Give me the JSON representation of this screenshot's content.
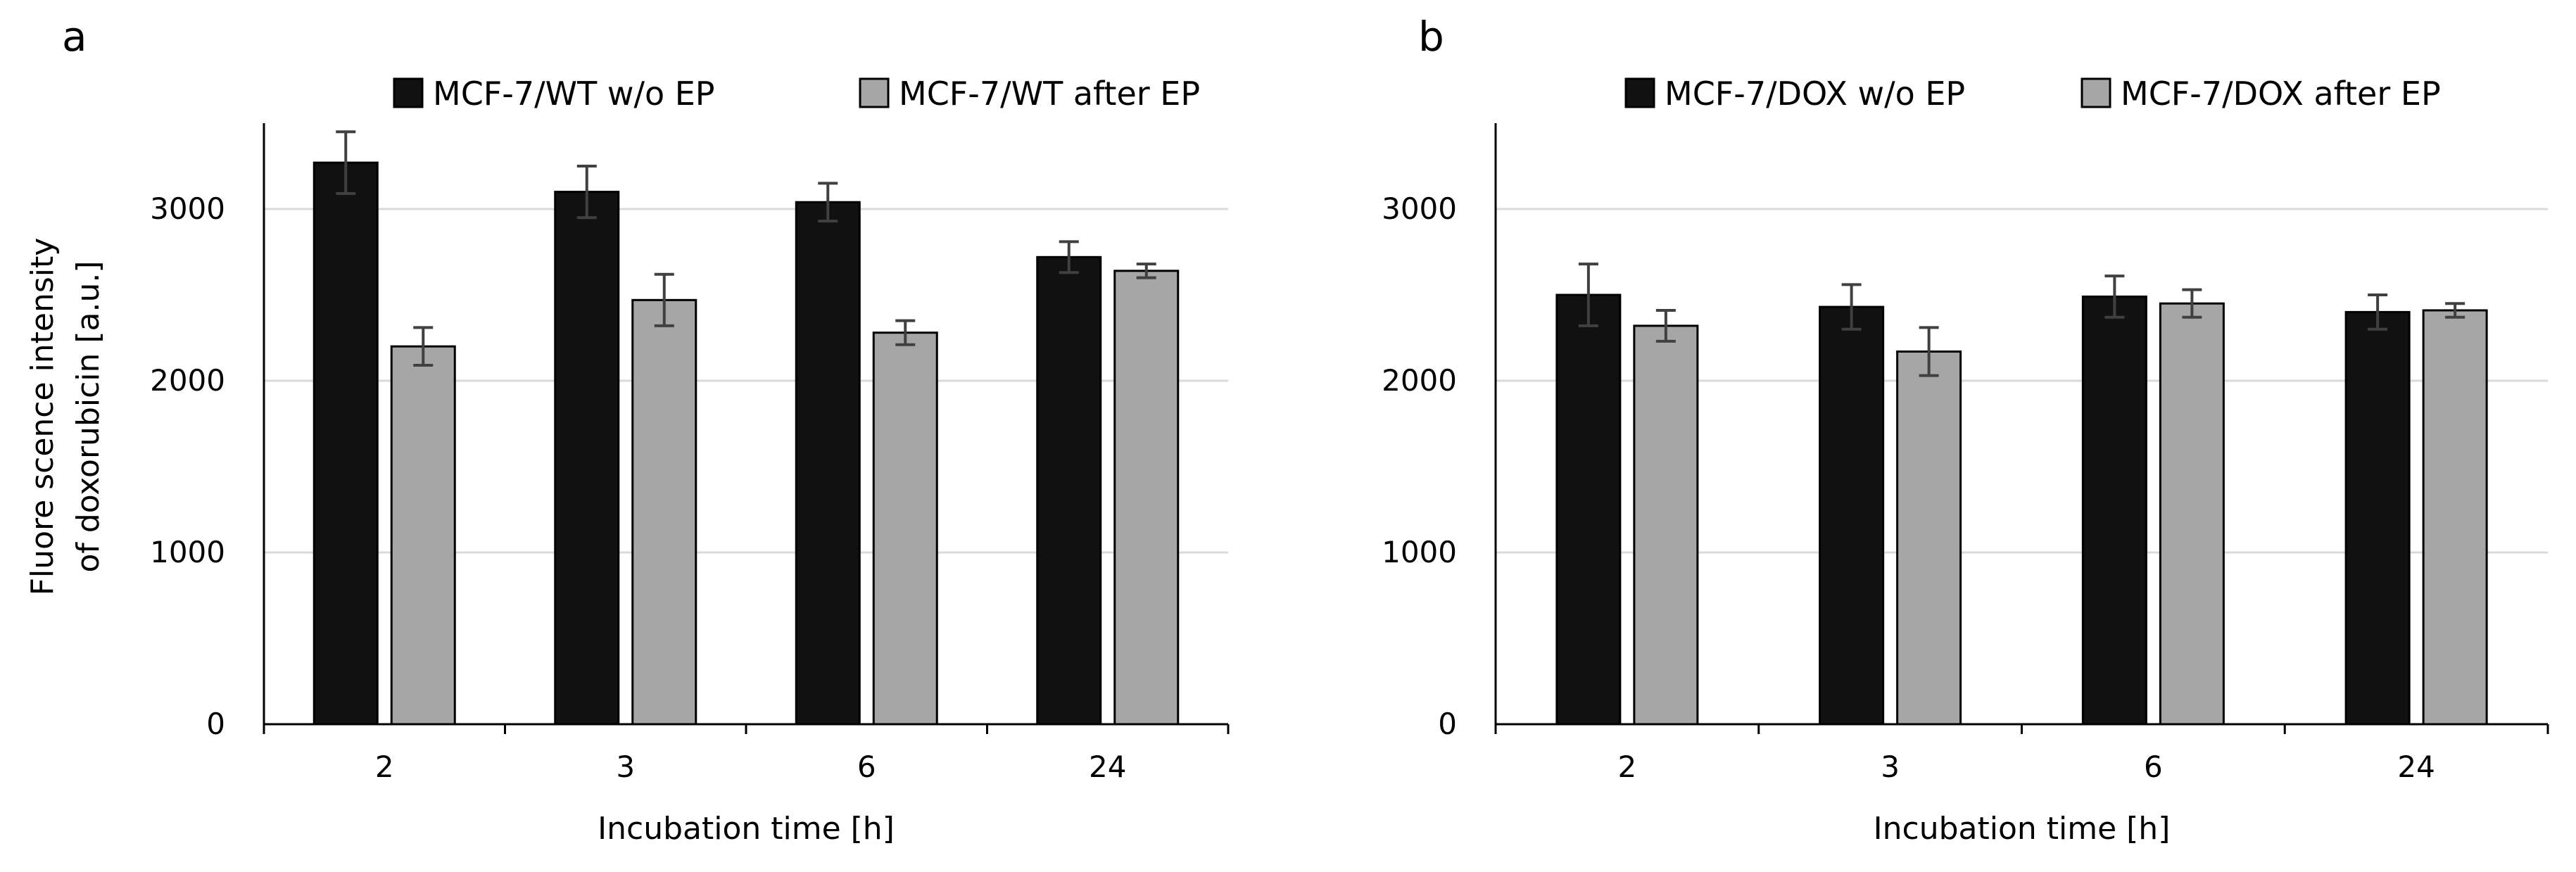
{
  "chart_data": [
    {
      "type": "bar",
      "panel_label": "a",
      "categories": [
        "2",
        "3",
        "6",
        "24"
      ],
      "series": [
        {
          "name": "MCF-7/WT w/o EP",
          "color": "#111111",
          "values": [
            3270,
            3100,
            3040,
            2720
          ],
          "errors": [
            180,
            150,
            110,
            90
          ]
        },
        {
          "name": "MCF-7/WT after EP",
          "color": "#a6a6a6",
          "values": [
            2200,
            2470,
            2280,
            2640
          ],
          "errors": [
            110,
            150,
            70,
            40
          ]
        }
      ],
      "xlabel": "Incubation time [h]",
      "ylabel_lines": [
        "Fluore scence intensity",
        "of doxorubicin [a.u.]"
      ],
      "ylim": [
        0,
        3500
      ],
      "yticks": [
        0,
        1000,
        2000,
        3000
      ],
      "ytick_labels": [
        "0",
        "1000",
        "2000",
        "3000"
      ],
      "grid": true,
      "legend_position": "top"
    },
    {
      "type": "bar",
      "panel_label": "b",
      "categories": [
        "2",
        "3",
        "6",
        "24"
      ],
      "series": [
        {
          "name": "MCF-7/DOX w/o EP",
          "color": "#111111",
          "values": [
            2500,
            2430,
            2490,
            2400
          ],
          "errors": [
            180,
            130,
            120,
            100
          ]
        },
        {
          "name": "MCF-7/DOX after EP",
          "color": "#a6a6a6",
          "values": [
            2320,
            2170,
            2450,
            2410
          ],
          "errors": [
            90,
            140,
            80,
            40
          ]
        }
      ],
      "xlabel": "Incubation time [h]",
      "ylabel_lines": [],
      "ylim": [
        0,
        3500
      ],
      "yticks": [
        0,
        1000,
        2000,
        3000
      ],
      "ytick_labels": [
        "0",
        "1000",
        "2000",
        "3000"
      ],
      "grid": true,
      "legend_position": "top"
    }
  ]
}
